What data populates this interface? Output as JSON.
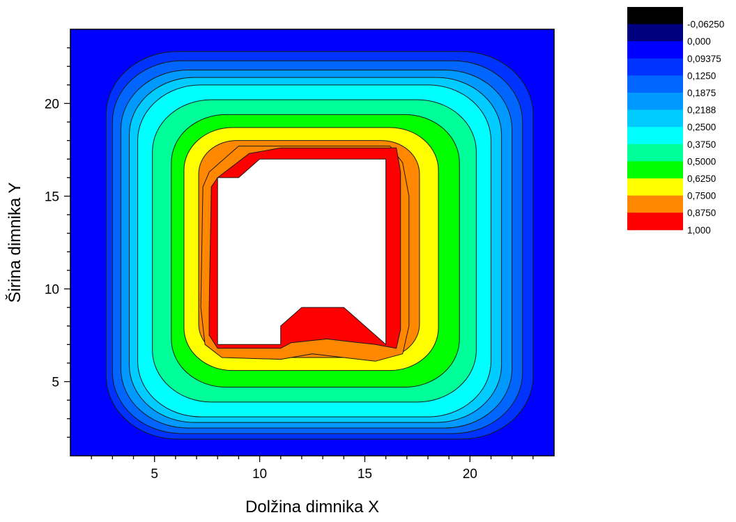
{
  "chart_data": {
    "type": "heatmap",
    "subtype": "filled-contour",
    "title": "",
    "xlabel": "Dolžina dimnika X",
    "ylabel": "Širina dimnika Y",
    "xlim": [
      1,
      24
    ],
    "ylim": [
      1,
      24
    ],
    "x_ticks": [
      "5",
      "10",
      "15",
      "20"
    ],
    "y_ticks": [
      "5",
      "10",
      "15",
      "20"
    ],
    "x_tick_values": [
      5,
      10,
      15,
      20
    ],
    "y_tick_values": [
      5,
      10,
      15,
      20
    ],
    "grid": false,
    "legend_placement": "right",
    "contour_levels": [
      -0.0625,
      0.0,
      0.09375,
      0.125,
      0.1875,
      0.2188,
      0.25,
      0.375,
      0.5,
      0.625,
      0.75,
      0.875,
      1.0
    ],
    "level_labels": [
      "-0,06250",
      "0,000",
      "0,09375",
      "0,1250",
      "0,1875",
      "0,2188",
      "0,2500",
      "0,3750",
      "0,5000",
      "0,6250",
      "0,7500",
      "0,8750",
      "1,000"
    ],
    "band_colors": [
      "#000000",
      "#00007f",
      "#0000ff",
      "#0033ff",
      "#0066ff",
      "#0099ff",
      "#00ccff",
      "#00ffff",
      "#00ff99",
      "#00ff00",
      "#ffff00",
      "#ff8800",
      "#ff0000"
    ],
    "rings": [
      {
        "level": 0.09375,
        "x0": 2.7,
        "x1": 23.0,
        "y0": 1.9,
        "y1": 22.8,
        "r": 3.4
      },
      {
        "level": 0.125,
        "x0": 3.0,
        "x1": 22.5,
        "y0": 2.2,
        "y1": 22.3,
        "r": 3.3
      },
      {
        "level": 0.1875,
        "x0": 3.4,
        "x1": 22.0,
        "y0": 2.5,
        "y1": 21.8,
        "r": 3.2
      },
      {
        "level": 0.2188,
        "x0": 3.8,
        "x1": 21.5,
        "y0": 2.8,
        "y1": 21.4,
        "r": 3.1
      },
      {
        "level": 0.25,
        "x0": 4.2,
        "x1": 21.0,
        "y0": 3.1,
        "y1": 21.0,
        "r": 3.0
      },
      {
        "level": 0.375,
        "x0": 4.9,
        "x1": 20.3,
        "y0": 3.9,
        "y1": 20.2,
        "r": 2.8
      },
      {
        "level": 0.5,
        "x0": 5.8,
        "x1": 19.5,
        "y0": 4.7,
        "y1": 19.4,
        "r": 2.6
      },
      {
        "level": 0.625,
        "x0": 6.4,
        "x1": 18.5,
        "y0": 5.6,
        "y1": 18.7,
        "r": 2.3
      },
      {
        "level": 0.75,
        "x0": 7.1,
        "x1": 17.6,
        "y0": 6.3,
        "y1": 18.0,
        "r": 1.8
      }
    ],
    "orange_band": [
      [
        7.3,
        15.5
      ],
      [
        7.6,
        16.3
      ],
      [
        9.0,
        17.7
      ],
      [
        16.2,
        17.7
      ],
      [
        16.8,
        16.8
      ],
      [
        17.1,
        15.0
      ],
      [
        17.1,
        8.0
      ],
      [
        16.8,
        6.5
      ],
      [
        15.5,
        6.1
      ],
      [
        14.0,
        6.3
      ],
      [
        12.5,
        6.5
      ],
      [
        11.0,
        6.2
      ],
      [
        8.2,
        6.3
      ],
      [
        7.4,
        7.0
      ],
      [
        7.2,
        9.0
      ]
    ],
    "red_band": [
      [
        7.7,
        15.5
      ],
      [
        8.0,
        16.0
      ],
      [
        9.5,
        17.3
      ],
      [
        11.0,
        17.6
      ],
      [
        16.5,
        17.6
      ],
      [
        16.7,
        16.3
      ],
      [
        16.7,
        7.8
      ],
      [
        16.5,
        6.8
      ],
      [
        15.5,
        7.0
      ],
      [
        13.2,
        7.3
      ],
      [
        11.5,
        7.1
      ],
      [
        11.0,
        6.8
      ],
      [
        8.0,
        6.8
      ],
      [
        7.6,
        7.5
      ],
      [
        7.6,
        9.0
      ]
    ],
    "hole_polygon": [
      [
        8.0,
        7.0
      ],
      [
        11.0,
        7.0
      ],
      [
        11.0,
        8.0
      ],
      [
        12.0,
        9.0
      ],
      [
        14.0,
        9.0
      ],
      [
        16.0,
        7.0
      ],
      [
        16.0,
        17.0
      ],
      [
        10.0,
        17.0
      ],
      [
        9.0,
        16.0
      ],
      [
        8.0,
        16.0
      ]
    ]
  }
}
